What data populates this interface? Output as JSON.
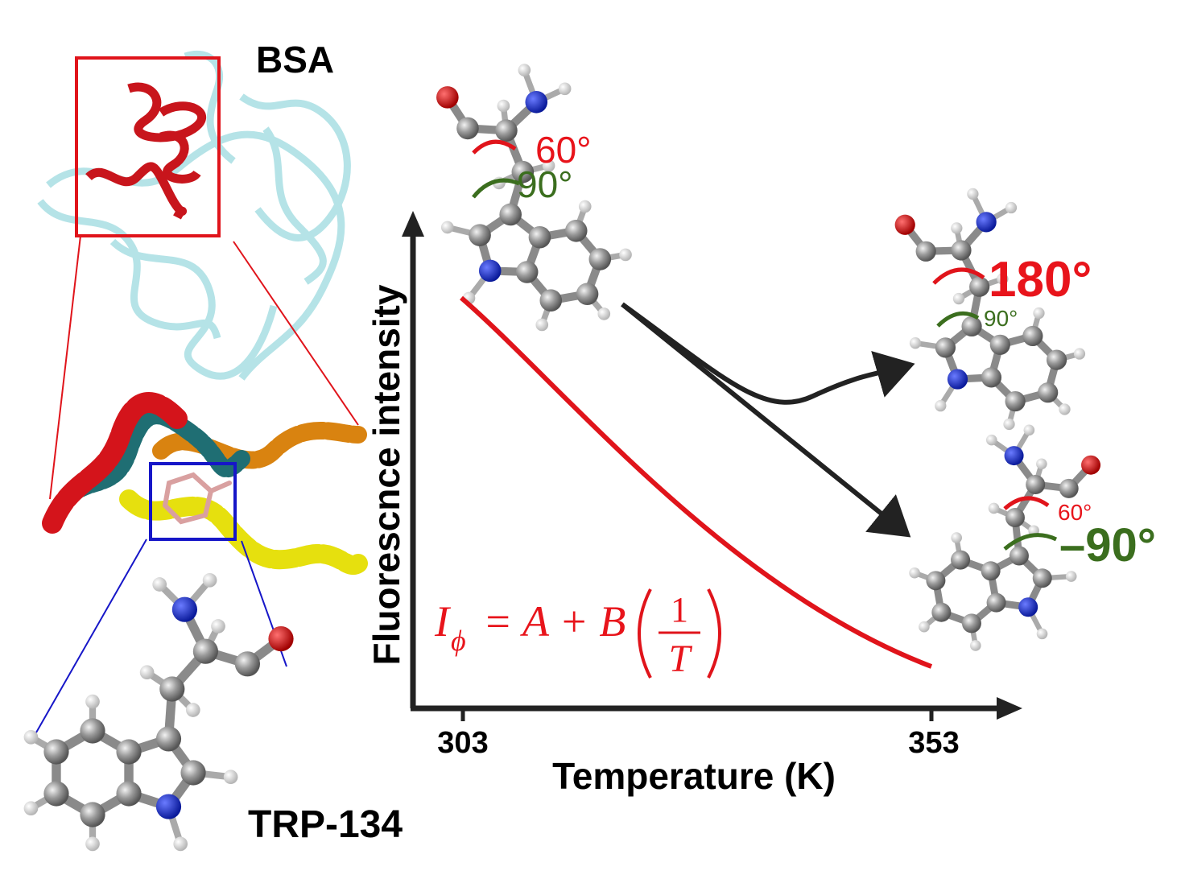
{
  "labels": {
    "protein": "BSA",
    "residue": "TRP-134"
  },
  "plot": {
    "y_axis_label": "Fluorescnce intensity",
    "x_axis_label": "Temperature (K)",
    "x_ticks": [
      303,
      353
    ],
    "formula": {
      "symbol": "I",
      "subscript": "ϕ",
      "rhs": "= A + B",
      "numerator": "1",
      "denominator": "T"
    }
  },
  "states": [
    {
      "angles": [
        "60°",
        "90°"
      ]
    },
    {
      "angles": [
        "180°",
        "90°"
      ]
    },
    {
      "angles": [
        "60°",
        "–90°"
      ]
    }
  ]
}
